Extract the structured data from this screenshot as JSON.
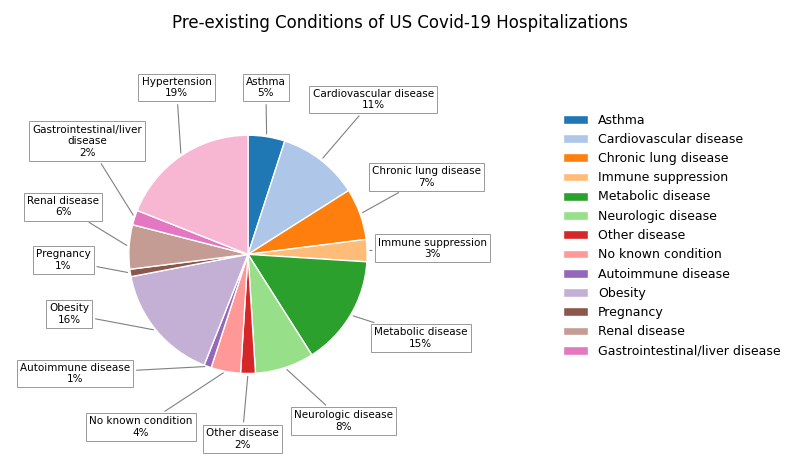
{
  "chart_data": {
    "type": "pie",
    "title": "Pre-existing Conditions of US Covid-19 Hospitalizations",
    "categories": [
      "Asthma",
      "Cardiovascular disease",
      "Chronic lung disease",
      "Immune suppression",
      "Metabolic disease",
      "Neurologic disease",
      "Other disease",
      "No known condition",
      "Autoimmune disease",
      "Obesity",
      "Pregnancy",
      "Renal disease",
      "Gastrointestinal/liver disease",
      "Hypertension"
    ],
    "values": [
      5,
      11,
      7,
      3,
      15,
      8,
      2,
      4,
      1,
      16,
      1,
      6,
      2,
      19
    ],
    "value_labels": [
      "Asthma\n5%",
      "Cardiovascular disease\n11%",
      "Chronic lung disease\n7%",
      "Immune suppression\n3%",
      "Metabolic disease\n15%",
      "Neurologic disease\n8%",
      "Other disease\n2%",
      "No known condition\n4%",
      "Autoimmune disease\n1%",
      "Obesity\n16%",
      "Pregnancy\n1%",
      "Renal disease\n6%",
      "Gastrointestinal/liver\ndisease\n2%",
      "Hypertension\n19%"
    ],
    "colors": [
      "#1f77b4",
      "#aec7e8",
      "#ff7f0e",
      "#ffbb78",
      "#2ca02c",
      "#98df8a",
      "#d62728",
      "#ff9896",
      "#9467bd",
      "#c5b0d5",
      "#8c564b",
      "#c49c94",
      "#e377c2",
      "#f7b6d2"
    ],
    "legend": "center right",
    "legend_labels": [
      "Asthma",
      "Cardiovascular disease",
      "Chronic lung disease",
      "Immune suppression",
      "Metabolic disease",
      "Neurologic disease",
      "Other disease",
      "No known condition",
      "Autoimmune disease",
      "Obesity",
      "Pregnancy",
      "Renal disease",
      "Gastrointestinal/liver disease"
    ]
  }
}
